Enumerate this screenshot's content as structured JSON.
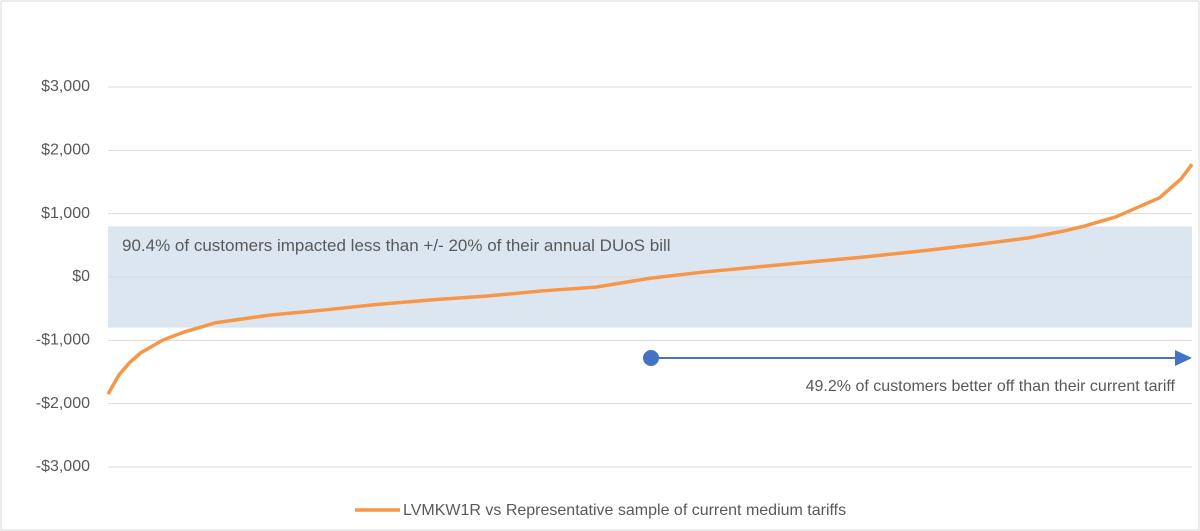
{
  "chart_data": {
    "type": "line",
    "x": [
      0,
      1,
      2,
      3,
      5,
      7,
      10,
      15,
      20,
      25,
      30,
      35,
      40,
      45,
      50,
      55,
      60,
      65,
      70,
      75,
      80,
      85,
      88,
      90,
      93,
      95,
      97,
      98,
      99,
      100
    ],
    "series": [
      {
        "name": "LVMKW1R vs Representative sample of current medium tariffs",
        "color": "#f79646",
        "values": [
          -1850,
          -1550,
          -1350,
          -1200,
          -1000,
          -870,
          -720,
          -600,
          -520,
          -430,
          -360,
          -300,
          -220,
          -160,
          -20,
          80,
          160,
          240,
          320,
          410,
          510,
          620,
          720,
          800,
          950,
          1100,
          1250,
          1400,
          1550,
          1780
        ]
      }
    ],
    "xlim": [
      0,
      100
    ],
    "ylim": [
      -3000,
      3000
    ],
    "yticks": [
      {
        "value": 3000,
        "label": "$3,000"
      },
      {
        "value": 2000,
        "label": "$2,000"
      },
      {
        "value": 1000,
        "label": "$1,000"
      },
      {
        "value": 0,
        "label": "$0"
      },
      {
        "value": -1000,
        "label": "-$1,000"
      },
      {
        "value": -2000,
        "label": "-$2,000"
      },
      {
        "value": -3000,
        "label": "-$3,000"
      }
    ],
    "grid": true,
    "band": {
      "range": [
        -800,
        800
      ],
      "color": "#dce6f1",
      "label": "90.4% of customers impacted less than +/- 20% of their annual DUoS bill"
    },
    "annotation": "49.2% of customers better off than their current tariff",
    "legend": "bottom"
  }
}
